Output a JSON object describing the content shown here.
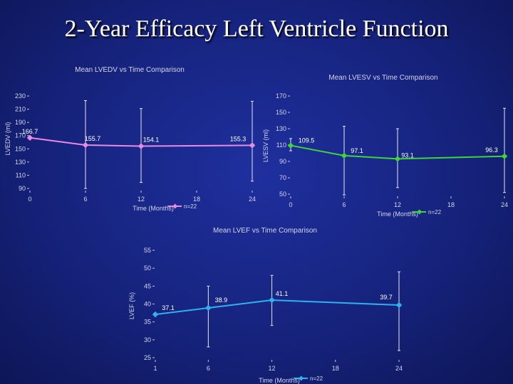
{
  "slide": {
    "title": "2-Year Efficacy Left Ventricle Function"
  },
  "chart_data": [
    {
      "type": "line",
      "title": "Mean LVEDV vs Time Comparison",
      "xlabel": "Time (Months)",
      "ylabel": "LVEDV (ml)",
      "x": [
        0,
        6,
        12,
        24
      ],
      "x_ticks": [
        "0",
        "6",
        "12",
        "18",
        "24"
      ],
      "y_ticks": [
        "90",
        "110",
        "130",
        "150",
        "170",
        "190",
        "210",
        "230"
      ],
      "ylim": [
        90,
        230
      ],
      "xlim": [
        0,
        24
      ],
      "series": [
        {
          "name": "n=22",
          "color": "#e88ae0",
          "values": [
            166.7,
            155.7,
            154.1,
            155.3
          ],
          "labels": [
            "166.7",
            "155.7",
            "154.1",
            "155.3"
          ]
        }
      ],
      "error_bars": [
        {
          "x": 6,
          "low": 90,
          "high": 223
        },
        {
          "x": 12,
          "low": 99,
          "high": 211
        },
        {
          "x": 24,
          "low": 101,
          "high": 222
        }
      ]
    },
    {
      "type": "line",
      "title": "Mean LVESV vs Time Comparison",
      "xlabel": "Time (Months)",
      "ylabel": "LVESV (ml)",
      "x": [
        0,
        6,
        12,
        24
      ],
      "x_ticks": [
        "0",
        "6",
        "12",
        "18",
        "24"
      ],
      "y_ticks": [
        "50",
        "70",
        "90",
        "110",
        "130",
        "150",
        "170"
      ],
      "ylim": [
        50,
        170
      ],
      "xlim": [
        0,
        24
      ],
      "series": [
        {
          "name": "n=22",
          "color": "#3ed43a",
          "values": [
            109.5,
            97.1,
            93.1,
            96.3
          ],
          "labels": [
            "109.5",
            "97.1",
            "93.1",
            "96.3"
          ]
        }
      ],
      "error_bars": [
        {
          "x": 0,
          "low": 103,
          "high": 118
        },
        {
          "x": 6,
          "low": 49,
          "high": 133
        },
        {
          "x": 12,
          "low": 58,
          "high": 130
        },
        {
          "x": 24,
          "low": 52,
          "high": 155
        }
      ]
    },
    {
      "type": "line",
      "title": "Mean LVEF vs Time Comparison",
      "xlabel": "Time (Months)",
      "ylabel": "LVEF (%)",
      "x": [
        1,
        6,
        12,
        24
      ],
      "x_ticks": [
        "1",
        "6",
        "12",
        "18",
        "24"
      ],
      "y_ticks": [
        "25",
        "30",
        "35",
        "40",
        "45",
        "50",
        "55"
      ],
      "ylim": [
        25,
        55
      ],
      "xlim": [
        1,
        24
      ],
      "series": [
        {
          "name": "n=22",
          "color": "#2fb2f0",
          "values": [
            37.1,
            38.9,
            41.1,
            39.7
          ],
          "labels": [
            "37.1",
            "38.9",
            "41.1",
            "39.7"
          ]
        }
      ],
      "error_bars": [
        {
          "x": 6,
          "low": 28,
          "high": 45
        },
        {
          "x": 12,
          "low": 34,
          "high": 48
        },
        {
          "x": 24,
          "low": 27,
          "high": 49
        }
      ]
    }
  ]
}
